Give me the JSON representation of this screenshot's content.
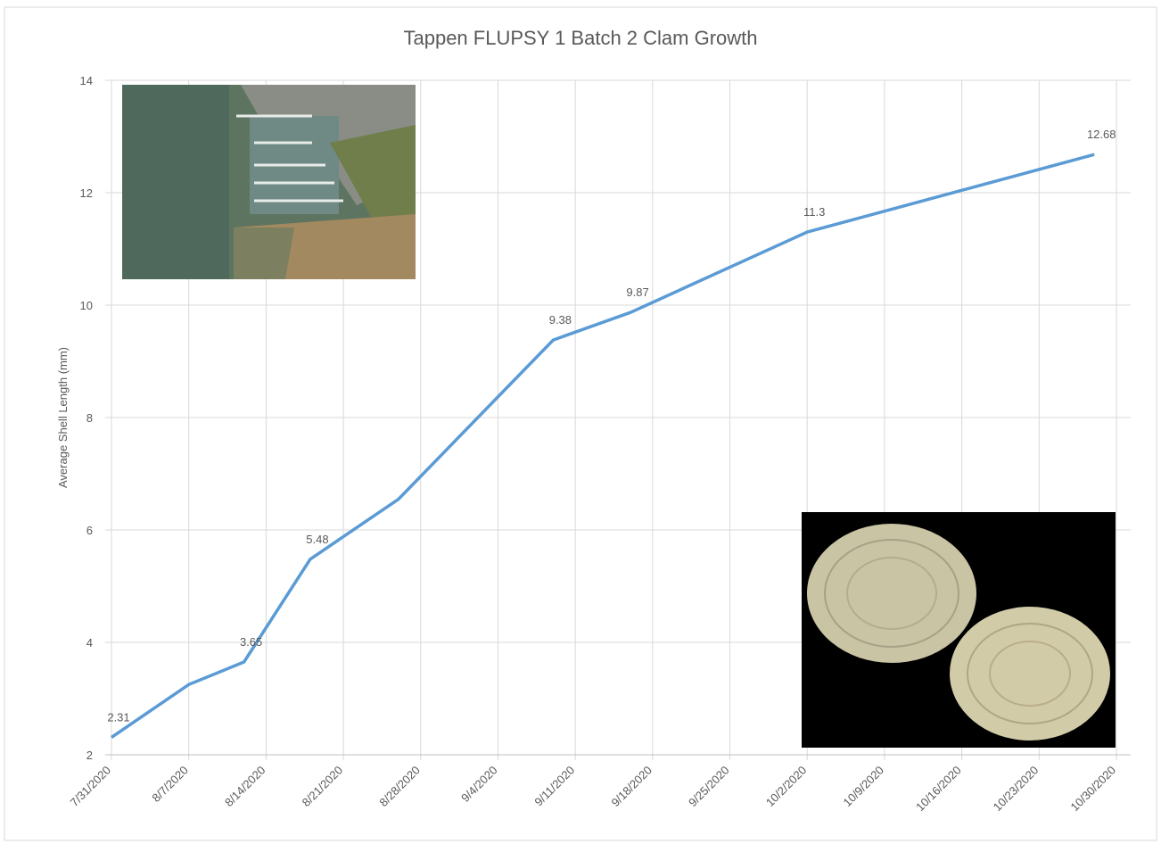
{
  "chart_data": {
    "type": "line",
    "title": "Tappen FLUPSY 1 Batch 2 Clam Growth",
    "y_label": "Average Shell Length (mm)",
    "x": [
      "7/31/2020",
      "8/7/2020",
      "8/12/2020",
      "8/18/2020",
      "8/26/2020",
      "9/9/2020",
      "9/16/2020",
      "10/2/2020",
      "10/28/2020"
    ],
    "series": [
      {
        "name": "Average Shell Length",
        "color": "#5b9bd5",
        "values": [
          2.31,
          3.25,
          3.65,
          5.48,
          6.55,
          9.38,
          9.87,
          11.3,
          12.68
        ],
        "value_labels": [
          "2.31",
          null,
          "3.65",
          "5.48",
          null,
          "9.38",
          "9.87",
          "11.3",
          "12.68"
        ]
      }
    ],
    "xlim": [
      "7/31/2020",
      "10/30/2020"
    ],
    "xticks": [
      "7/31/2020",
      "8/7/2020",
      "8/14/2020",
      "8/21/2020",
      "8/28/2020",
      "9/4/2020",
      "9/11/2020",
      "9/18/2020",
      "9/25/2020",
      "10/2/2020",
      "10/9/2020",
      "10/16/2020",
      "10/23/2020",
      "10/30/2020"
    ],
    "ylim": [
      2,
      14
    ],
    "yticks": [
      2,
      4,
      6,
      8,
      10,
      12,
      14
    ],
    "grid": true
  }
}
